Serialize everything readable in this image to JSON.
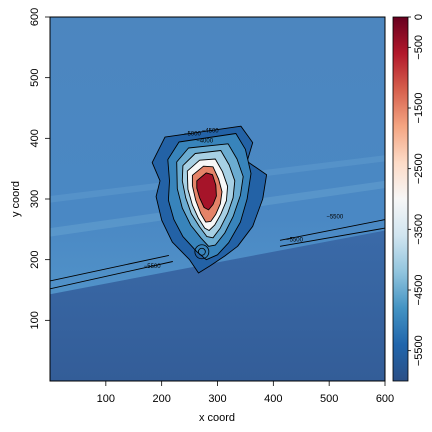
{
  "chart_data": {
    "type": "heatmap",
    "title": "",
    "xlabel": "x coord",
    "ylabel": "y coord",
    "xlim": [
      0,
      600
    ],
    "ylim": [
      0,
      600
    ],
    "x_ticks": [
      100,
      200,
      300,
      400,
      500,
      600
    ],
    "y_ticks": [
      100,
      200,
      300,
      400,
      500,
      600
    ],
    "colorbar": {
      "placement": "right",
      "range": [
        -6000,
        0
      ],
      "ticks": [
        0,
        -500,
        -1500,
        -2500,
        -3500,
        -4500,
        -5500
      ],
      "tick_labels": [
        "0",
        "−500",
        "−1500",
        "−2500",
        "−3500",
        "−4500",
        "−5500"
      ],
      "palette": [
        "#67001f",
        "#b2182b",
        "#d6604d",
        "#f4a582",
        "#fddbc7",
        "#f7f7f7",
        "#d1e5f0",
        "#92c5de",
        "#4393c3",
        "#2166ac",
        "#2b4f86"
      ]
    },
    "background_values": {
      "upper_region_depth": -5300,
      "lower_region_depth": -5650
    },
    "contour_labels": [
      {
        "text": "−5000",
        "x": 255,
        "y": 405
      },
      {
        "text": "−4500",
        "x": 287,
        "y": 410
      },
      {
        "text": "−4000",
        "x": 277,
        "y": 393
      },
      {
        "text": "−5500",
        "x": 510,
        "y": 268
      },
      {
        "text": "−5500",
        "x": 438,
        "y": 230
      },
      {
        "text": "−5500",
        "x": 183,
        "y": 186
      }
    ],
    "feature_contours": [
      {
        "level": -5500,
        "points": [
          [
            183,
            360
          ],
          [
            206,
            402
          ],
          [
            342,
            420
          ],
          [
            363,
            393
          ],
          [
            353,
            362
          ],
          [
            388,
            340
          ],
          [
            381,
            300
          ],
          [
            363,
            255
          ],
          [
            336,
            222
          ],
          [
            313,
            206
          ],
          [
            287,
            190
          ],
          [
            266,
            178
          ],
          [
            250,
            200
          ],
          [
            219,
            229
          ],
          [
            200,
            265
          ],
          [
            190,
            304
          ],
          [
            197,
            330
          ],
          [
            183,
            360
          ]
        ]
      },
      {
        "level": -5000,
        "points": [
          [
            211,
            365
          ],
          [
            231,
            394
          ],
          [
            333,
            408
          ],
          [
            350,
            382
          ],
          [
            360,
            342
          ],
          [
            353,
            300
          ],
          [
            341,
            262
          ],
          [
            320,
            228
          ],
          [
            300,
            208
          ],
          [
            280,
            200
          ],
          [
            262,
            214
          ],
          [
            238,
            238
          ],
          [
            222,
            266
          ],
          [
            212,
            298
          ],
          [
            214,
            330
          ],
          [
            211,
            365
          ]
        ]
      },
      {
        "level": -4500,
        "points": [
          [
            227,
            361
          ],
          [
            248,
            384
          ],
          [
            319,
            391
          ],
          [
            335,
            366
          ],
          [
            346,
            337
          ],
          [
            341,
            306
          ],
          [
            328,
            271
          ],
          [
            313,
            244
          ],
          [
            296,
            224
          ],
          [
            284,
            222
          ],
          [
            270,
            236
          ],
          [
            252,
            257
          ],
          [
            237,
            285
          ],
          [
            228,
            317
          ],
          [
            227,
            361
          ]
        ]
      },
      {
        "level": -4000,
        "points": [
          [
            238,
            355
          ],
          [
            260,
            375
          ],
          [
            306,
            380
          ],
          [
            321,
            356
          ],
          [
            331,
            330
          ],
          [
            328,
            302
          ],
          [
            318,
            276
          ],
          [
            305,
            252
          ],
          [
            292,
            236
          ],
          [
            281,
            238
          ],
          [
            268,
            254
          ],
          [
            253,
            276
          ],
          [
            243,
            302
          ],
          [
            237,
            330
          ],
          [
            238,
            355
          ]
        ]
      },
      {
        "level": -3000,
        "points": [
          [
            246,
            346
          ],
          [
            268,
            364
          ],
          [
            296,
            366
          ],
          [
            309,
            345
          ],
          [
            318,
            321
          ],
          [
            316,
            297
          ],
          [
            306,
            275
          ],
          [
            295,
            257
          ],
          [
            285,
            248
          ],
          [
            277,
            252
          ],
          [
            266,
            268
          ],
          [
            255,
            290
          ],
          [
            247,
            316
          ],
          [
            246,
            346
          ]
        ]
      },
      {
        "level": -1500,
        "points": [
          [
            255,
            339
          ],
          [
            275,
            354
          ],
          [
            292,
            353
          ],
          [
            302,
            333
          ],
          [
            308,
            312
          ],
          [
            305,
            292
          ],
          [
            297,
            275
          ],
          [
            288,
            263
          ],
          [
            279,
            262
          ],
          [
            270,
            276
          ],
          [
            261,
            298
          ],
          [
            255,
            322
          ],
          [
            255,
            339
          ]
        ]
      },
      {
        "level": -500,
        "points": [
          [
            263,
            330
          ],
          [
            280,
            343
          ],
          [
            291,
            340
          ],
          [
            297,
            323
          ],
          [
            298,
            305
          ],
          [
            292,
            291
          ],
          [
            284,
            282
          ],
          [
            276,
            286
          ],
          [
            268,
            302
          ],
          [
            263,
            318
          ],
          [
            263,
            330
          ]
        ]
      }
    ],
    "trench_lines": [
      {
        "level": -5500,
        "points": [
          [
            0,
            165
          ],
          [
            213,
            207
          ]
        ]
      },
      {
        "level": -5500,
        "points": [
          [
            0,
            152
          ],
          [
            220,
            197
          ]
        ]
      },
      {
        "level": -5500,
        "points": [
          [
            412,
            232
          ],
          [
            600,
            266
          ]
        ]
      },
      {
        "level": -5500,
        "points": [
          [
            412,
            222
          ],
          [
            600,
            252
          ]
        ]
      }
    ]
  }
}
